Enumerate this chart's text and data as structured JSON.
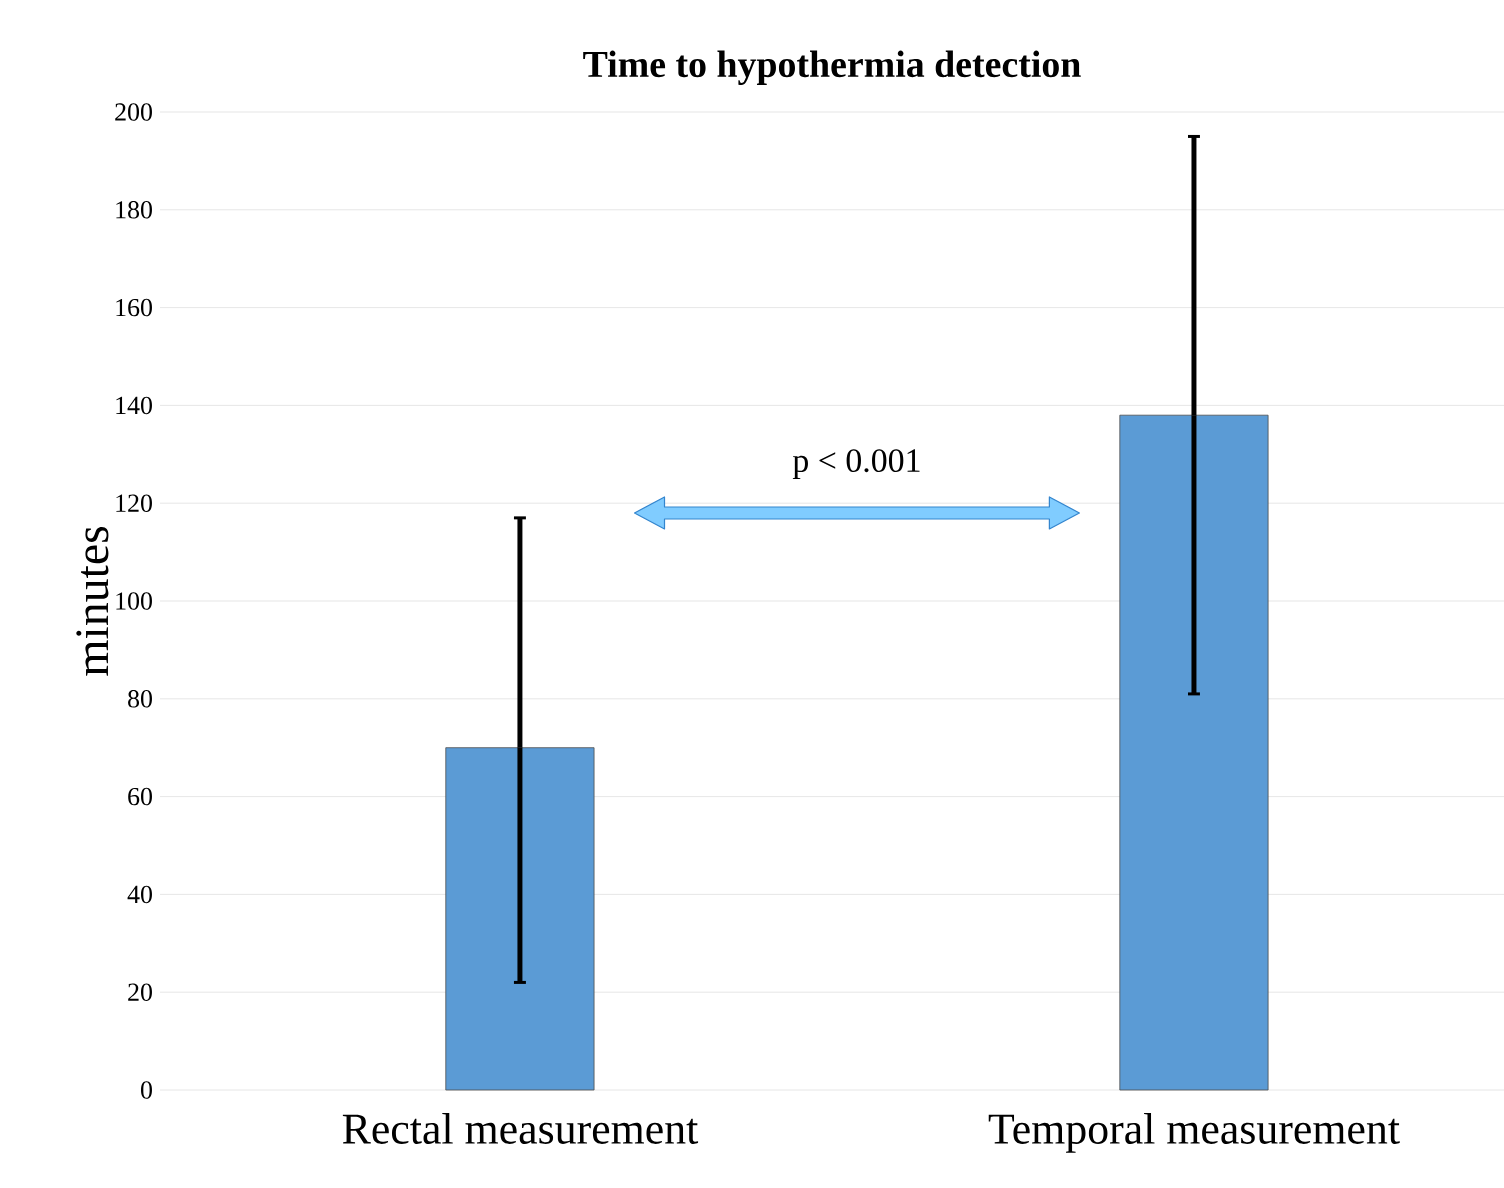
{
  "chart_data": {
    "type": "bar",
    "title": "Time to hypothermia detection",
    "ylabel": "minutes",
    "categories": [
      "Rectal measurement",
      "Temporal measurement"
    ],
    "values": [
      70,
      138
    ],
    "color": "#5b9bd5",
    "errors": [
      [
        22,
        117
      ],
      [
        81,
        195
      ]
    ],
    "ylim": [
      0,
      200
    ],
    "yticks": [
      0,
      20,
      40,
      60,
      80,
      100,
      120,
      140,
      160,
      180,
      200
    ],
    "grid": "y",
    "annotations": [
      "p < 0.001"
    ]
  }
}
